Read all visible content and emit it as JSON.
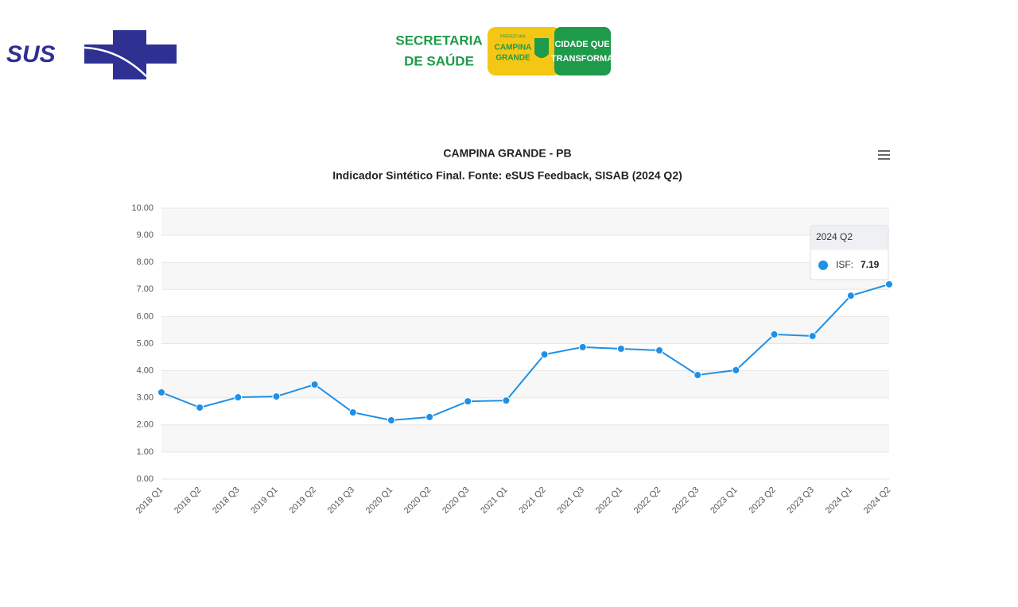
{
  "header": {
    "sus": "SUS",
    "secretaria": [
      "SECRETARIA",
      "DE SAÚDE"
    ],
    "prefeitura": "PREFEITURA",
    "campina": [
      "CAMPINA",
      "GRANDE"
    ],
    "cidade": [
      "CIDADE QUE",
      "TRANSFORMA"
    ]
  },
  "chart_data": {
    "type": "line",
    "title": "CAMPINA GRANDE - PB",
    "subtitle": "Indicador Sintético Final. Fonte: eSUS Feedback, SISAB (2024 Q2)",
    "categories": [
      "2018 Q1",
      "2018 Q2",
      "2018 Q3",
      "2019 Q1",
      "2019 Q2",
      "2019 Q3",
      "2020 Q1",
      "2020 Q2",
      "2020 Q3",
      "2021 Q1",
      "2021 Q2",
      "2021 Q3",
      "2022 Q1",
      "2022 Q2",
      "2022 Q3",
      "2023 Q1",
      "2023 Q2",
      "2023 Q3",
      "2024 Q1",
      "2024 Q2"
    ],
    "series": [
      {
        "name": "ISF:",
        "color": "#1e90e6",
        "values": [
          3.2,
          2.64,
          3.02,
          3.05,
          3.49,
          2.46,
          2.17,
          2.29,
          2.87,
          2.9,
          4.6,
          4.87,
          4.81,
          4.75,
          3.84,
          4.02,
          5.34,
          5.28,
          6.77,
          7.19
        ]
      }
    ],
    "ylim": [
      0,
      10
    ],
    "yticks": [
      {
        "value": 0,
        "label": "0.00"
      },
      {
        "value": 1,
        "label": "1.00"
      },
      {
        "value": 2,
        "label": "2.00"
      },
      {
        "value": 3,
        "label": "3.00"
      },
      {
        "value": 4,
        "label": "4.00"
      },
      {
        "value": 5,
        "label": "5.00"
      },
      {
        "value": 6,
        "label": "6.00"
      },
      {
        "value": 7,
        "label": "7.00"
      },
      {
        "value": 8,
        "label": "8.00"
      },
      {
        "value": 9,
        "label": "9.00"
      },
      {
        "value": 10,
        "label": "10.00"
      }
    ],
    "grid": true
  }
}
